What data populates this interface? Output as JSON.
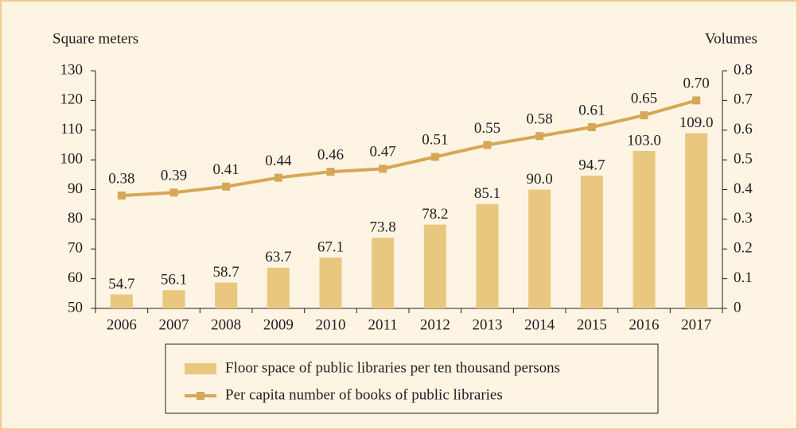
{
  "chart_data": {
    "type": "bar",
    "y_label": "Square meters",
    "y2_label": "Volumes",
    "categories": [
      "2006",
      "2007",
      "2008",
      "2009",
      "2010",
      "2011",
      "2012",
      "2013",
      "2014",
      "2015",
      "2016",
      "2017"
    ],
    "series": [
      {
        "name": "Floor space of public libraries per ten thousand persons",
        "color": "#e9c77e",
        "type": "bar",
        "values": [
          54.7,
          56.1,
          58.7,
          63.7,
          67.1,
          73.8,
          78.2,
          85.1,
          90.0,
          94.7,
          103.0,
          109.0
        ],
        "value_labels": [
          "54.7",
          "56.1",
          "58.7",
          "63.7",
          "67.1",
          "73.8",
          "78.2",
          "85.1",
          "90.0",
          "94.7",
          "103.0",
          "109.0"
        ]
      },
      {
        "name": "Per capita number of books of public libraries",
        "color": "#d6a756",
        "type": "line",
        "axis": "y2",
        "values": [
          0.38,
          0.39,
          0.41,
          0.44,
          0.46,
          0.47,
          0.51,
          0.55,
          0.58,
          0.61,
          0.65,
          0.7
        ],
        "value_labels": [
          "0.38",
          "0.39",
          "0.41",
          "0.44",
          "0.46",
          "0.47",
          "0.51",
          "0.55",
          "0.58",
          "0.61",
          "0.65",
          "0.70"
        ]
      }
    ],
    "ylim": [
      50,
      130
    ],
    "yticks": [
      50,
      60,
      70,
      80,
      90,
      100,
      110,
      120,
      130
    ],
    "y2lim": [
      0,
      0.8
    ],
    "y2ticks": [
      0,
      0.1,
      0.2,
      0.3,
      0.4,
      0.5,
      0.6,
      0.7,
      0.8
    ]
  }
}
